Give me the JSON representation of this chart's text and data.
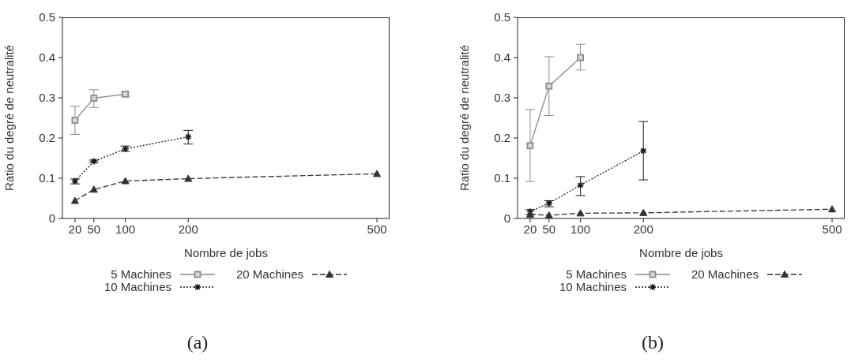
{
  "chart_data": [
    {
      "type": "line",
      "xlabel": "Nombre de jobs",
      "ylabel": "Ratio du degré de neutralité",
      "xlim": [
        0,
        520
      ],
      "xticks": [
        20,
        50,
        100,
        200,
        500
      ],
      "ylim": [
        0,
        0.5
      ],
      "yticks": [
        0,
        0.1,
        0.2,
        0.3,
        0.4,
        0.5
      ],
      "legend": "bottom",
      "annotations": [
        "(a)"
      ],
      "series": [
        {
          "name": "5 Machines",
          "color": "#8c8c8c",
          "marker": "square",
          "line_style": "solid",
          "x": [
            20,
            50,
            100
          ],
          "values": [
            0.244,
            0.299,
            0.309
          ],
          "errors": [
            [
              0.209,
              0.279
            ],
            [
              0.276,
              0.32
            ],
            [
              0.304,
              0.314
            ]
          ]
        },
        {
          "name": "10 Machines",
          "color": "#1a1a1a",
          "marker": "cross",
          "line_style": "dotted",
          "x": [
            20,
            50,
            100,
            200
          ],
          "values": [
            0.093,
            0.142,
            0.173,
            0.203
          ],
          "errors": [
            [
              0.086,
              0.098
            ],
            [
              0.139,
              0.145
            ],
            [
              0.167,
              0.18
            ],
            [
              0.185,
              0.219
            ]
          ]
        },
        {
          "name": "20 Machines",
          "color": "#333333",
          "marker": "triangle",
          "line_style": "dashed",
          "x": [
            20,
            50,
            100,
            200,
            500
          ],
          "values": [
            0.044,
            0.072,
            0.093,
            0.099,
            0.111
          ]
        }
      ]
    },
    {
      "type": "line",
      "xlabel": "Nombre de jobs",
      "ylabel": "Ratio du degré de neutralité",
      "xlim": [
        0,
        520
      ],
      "xticks": [
        20,
        50,
        100,
        200,
        500
      ],
      "ylim": [
        0,
        0.5
      ],
      "yticks": [
        0,
        0.1,
        0.2,
        0.3,
        0.4,
        0.5
      ],
      "legend": "bottom",
      "annotations": [
        "(b)"
      ],
      "series": [
        {
          "name": "5 Machines",
          "color": "#8c8c8c",
          "marker": "square",
          "line_style": "solid",
          "x": [
            20,
            50,
            100
          ],
          "values": [
            0.181,
            0.329,
            0.4
          ],
          "errors": [
            [
              0.092,
              0.271
            ],
            [
              0.256,
              0.402
            ],
            [
              0.369,
              0.433
            ]
          ]
        },
        {
          "name": "10 Machines",
          "color": "#1a1a1a",
          "marker": "cross",
          "line_style": "dotted",
          "x": [
            20,
            50,
            100,
            200
          ],
          "values": [
            0.017,
            0.038,
            0.083,
            0.168
          ],
          "errors": [
            [
              0.01,
              0.022
            ],
            [
              0.029,
              0.044
            ],
            [
              0.057,
              0.104
            ],
            [
              0.096,
              0.241
            ]
          ]
        },
        {
          "name": "20 Machines",
          "color": "#333333",
          "marker": "triangle",
          "line_style": "dashed",
          "x": [
            20,
            50,
            100,
            200,
            500
          ],
          "values": [
            0.01,
            0.008,
            0.013,
            0.014,
            0.023
          ]
        }
      ]
    }
  ]
}
